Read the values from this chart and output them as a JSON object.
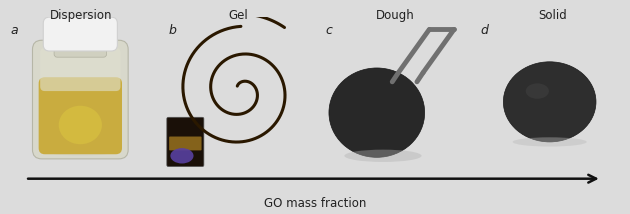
{
  "figure_width": 6.3,
  "figure_height": 2.14,
  "dpi": 100,
  "bg_color": "#dcdcdc",
  "panel_bg_a": "#c8c8c8",
  "panel_bg_b": "#d0d0d0",
  "panel_bg_c": "#d4d4d4",
  "panel_bg_d": "#d8d8d8",
  "panel_titles": [
    "Dispersion",
    "Gel",
    "Dough",
    "Solid"
  ],
  "panel_labels": [
    "a",
    "b",
    "c",
    "d"
  ],
  "title_fontsize": 8.5,
  "label_fontsize": 9,
  "arrow_label": "GO mass fraction",
  "arrow_label_fontsize": 8.5,
  "bottle_body_color": "#e8d890",
  "bottle_liquid_color": "#c8a830",
  "bottle_cap_color": "#f0f0f0",
  "bottle_glass_color": "#e8e8d0",
  "spiral_color": "#2a1800",
  "spiral_linewidth": 2.2,
  "vial_dark_color": "#1a1008",
  "vial_amber_color": "#a07820",
  "vial_purple_color": "#5840a0",
  "dough_color": "#282828",
  "tweezer_color": "#707070",
  "disk_color": "#2e2e2e",
  "arrow_color": "#111111",
  "text_color": "#222222"
}
